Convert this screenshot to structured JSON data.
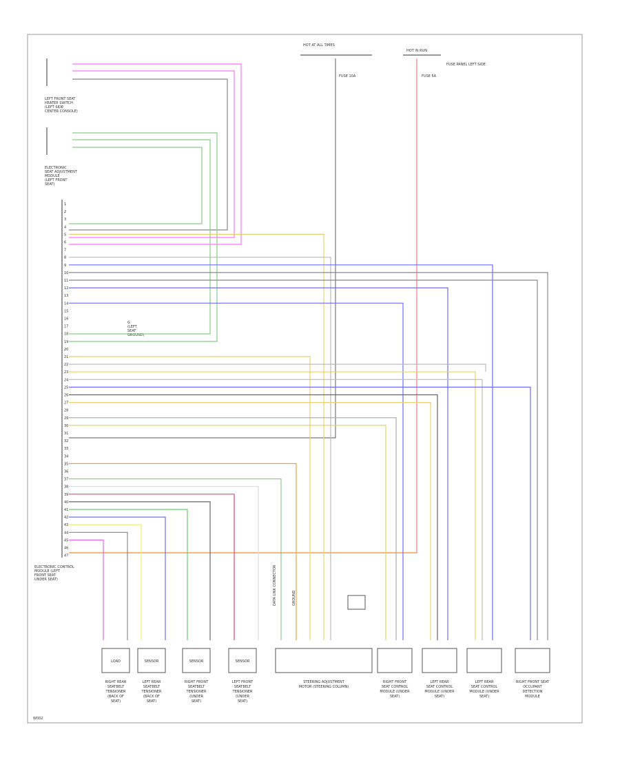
{
  "header": {
    "fuse_box_1": "HOT AT ALL TIMES",
    "fuse_box_2": "HOT IN RUN",
    "fuse_1": "FUSE 10A",
    "fuse_2": "FUSE 5A",
    "fuse_note": "FUSE PANEL LEFT SIDE"
  },
  "connectors": {
    "front_left_label": [
      "LEFT FRONT SEAT",
      "HEATER SWITCH",
      "(LEFT SIDE",
      "CENTER CONSOLE)"
    ],
    "module_label": [
      "ELECTRONIC",
      "SEAT ADJUSTMENT",
      "MODULE",
      "(LEFT FRONT",
      "SEAT)"
    ],
    "bottom_label": [
      "ELECTRONIC CONTROL",
      "MODULE (LEFT",
      "FRONT SEAT",
      "UNDER SEAT)"
    ],
    "ground_label": [
      "G",
      "(LEFT",
      "SEAT",
      "GROUND)"
    ],
    "pins": [
      "1",
      "2",
      "3",
      "4",
      "5",
      "6",
      "7",
      "8",
      "9",
      "10",
      "11",
      "12",
      "13",
      "14",
      "15",
      "16",
      "17",
      "18",
      "19",
      "20",
      "21",
      "22",
      "23",
      "24",
      "25",
      "26",
      "27",
      "28",
      "29",
      "30",
      "31",
      "32",
      "33",
      "34",
      "35",
      "36",
      "37",
      "38",
      "39",
      "40",
      "41",
      "42",
      "43",
      "44",
      "45",
      "46",
      "47"
    ],
    "data_link": "DATA LINK CONNECTOR",
    "ground": "GROUND"
  },
  "components": [
    {
      "box": "LOAD",
      "lines": [
        "RIGHT REAR",
        "SEATBELT",
        "TENSIONER",
        "(BACK OF",
        "SEAT)"
      ]
    },
    {
      "box": "SENSOR",
      "lines": [
        "LEFT REAR",
        "SEATBELT",
        "TENSIONER",
        "(BACK OF",
        "SEAT)"
      ]
    },
    {
      "box": "SENSOR",
      "lines": [
        "RIGHT FRONT",
        "SEATBELT",
        "TENSIONER",
        "(UNDER",
        "SEAT)"
      ]
    },
    {
      "box": "SENSOR",
      "lines": [
        "LEFT FRONT",
        "SEATBELT",
        "TENSIONER",
        "(UNDER",
        "SEAT)"
      ]
    },
    {
      "box": "",
      "lines": [
        "STEERING ADJUSTMENT",
        "MOTOR (STEERING COLUMN)"
      ]
    },
    {
      "box": "",
      "lines": [
        "RIGHT FRONT",
        "SEAT CONTROL",
        "MODULE (UNDER",
        "SEAT)"
      ]
    },
    {
      "box": "",
      "lines": [
        "LEFT REAR",
        "SEAT CONTROL",
        "MODULE (UNDER",
        "SEAT)"
      ]
    },
    {
      "box": "",
      "lines": [
        "LEFT REAR",
        "SEAT CONTROL",
        "MODULE (UNDER",
        "SEAT)"
      ]
    },
    {
      "box": "",
      "lines": [
        "RIGHT FRONT SEAT",
        "OCCUPANT",
        "DETECTION",
        "MODULE"
      ]
    }
  ],
  "footer": "W002"
}
